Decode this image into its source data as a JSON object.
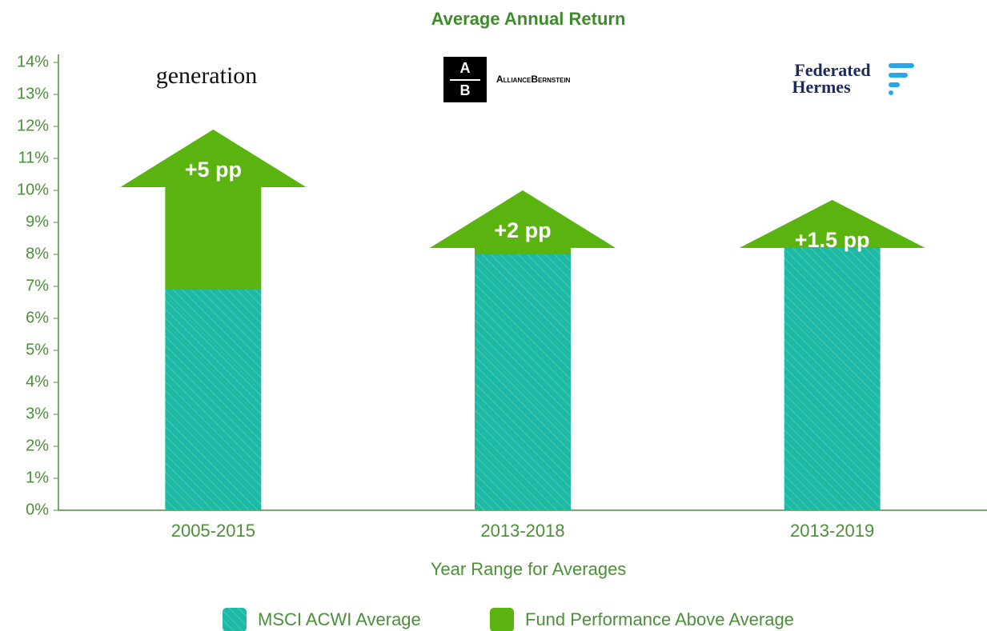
{
  "chart_data": {
    "type": "stacked_arrow_bar",
    "title": "Average Annual Return",
    "xlabel": "Year Range for Averages",
    "categories": [
      "2005-2015",
      "2013-2018",
      "2013-2019"
    ],
    "series": [
      {
        "name": "MSCI ACWI Average",
        "color": "#1cb8a8",
        "values": [
          6.9,
          8,
          8.2
        ]
      },
      {
        "name": "Fund Performance Above Average",
        "color": "#5ab30f",
        "values": [
          5,
          2,
          1.5
        ],
        "value_labels": [
          "+5 pp",
          "+2 pp",
          "+1.5 pp"
        ]
      }
    ],
    "ylim": [
      0,
      14
    ],
    "yticks": [
      {
        "value": 0,
        "label": "0%"
      },
      {
        "value": 1,
        "label": "1%"
      },
      {
        "value": 2,
        "label": "2%"
      },
      {
        "value": 3,
        "label": "3%"
      },
      {
        "value": 4,
        "label": "4%"
      },
      {
        "value": 5,
        "label": "5%"
      },
      {
        "value": 6,
        "label": "6%"
      },
      {
        "value": 7,
        "label": "7%"
      },
      {
        "value": 8,
        "label": "8%"
      },
      {
        "value": 9,
        "label": "9%"
      },
      {
        "value": 10,
        "label": "10%"
      },
      {
        "value": 11,
        "label": "11%"
      },
      {
        "value": 12,
        "label": "12%"
      },
      {
        "value": 13,
        "label": "13%"
      },
      {
        "value": 14,
        "label": "14%"
      }
    ],
    "legend": "bottom"
  },
  "logos": [
    {
      "text": "generation"
    },
    {
      "letters": [
        "A",
        "B"
      ],
      "text": "AllianceBernstein"
    },
    {
      "lines": [
        "Federated",
        "Hermes"
      ]
    }
  ]
}
